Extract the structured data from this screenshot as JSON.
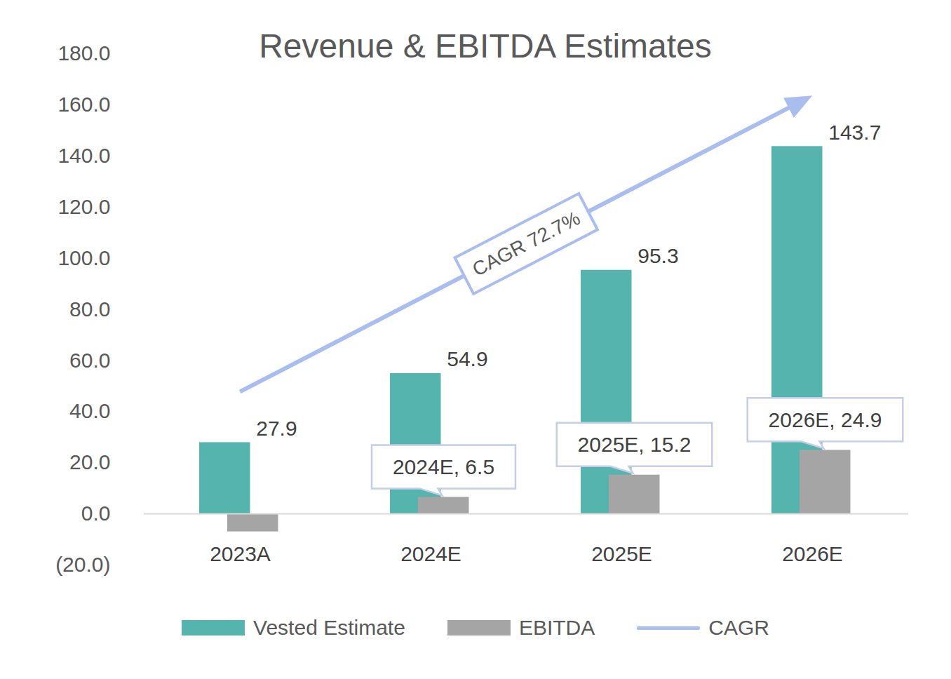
{
  "chart_data": {
    "type": "bar",
    "title": "Revenue & EBITDA Estimates",
    "categories": [
      "2023A",
      "2024E",
      "2025E",
      "2026E"
    ],
    "series": [
      {
        "name": "Vested Estimate",
        "color": "#56b4ae",
        "values": [
          27.9,
          54.9,
          95.3,
          143.7
        ],
        "data_labels": true
      },
      {
        "name": "EBITDA",
        "color": "#a5a5a5",
        "values": [
          -7.0,
          6.5,
          15.2,
          24.9
        ],
        "value_labels": [
          null,
          "2024E, 6.5",
          "2025E, 15.2",
          "2026E, 24.9"
        ]
      }
    ],
    "annotations": [
      {
        "type": "arrow",
        "name": "CAGR",
        "text": "CAGR 72.7%",
        "color": "#a9bdee"
      }
    ],
    "ylim": [
      -20,
      180
    ],
    "yticks": [
      {
        "value": -20,
        "label": "(20.0)"
      },
      {
        "value": 0,
        "label": "0.0"
      },
      {
        "value": 20,
        "label": "20.0"
      },
      {
        "value": 40,
        "label": "40.0"
      },
      {
        "value": 60,
        "label": "60.0"
      },
      {
        "value": 80,
        "label": "80.0"
      },
      {
        "value": 100,
        "label": "100.0"
      },
      {
        "value": 120,
        "label": "120.0"
      },
      {
        "value": 140,
        "label": "140.0"
      },
      {
        "value": 160,
        "label": "160.0"
      },
      {
        "value": 180,
        "label": "180.0"
      }
    ],
    "grid": false,
    "legend": "bottom"
  }
}
